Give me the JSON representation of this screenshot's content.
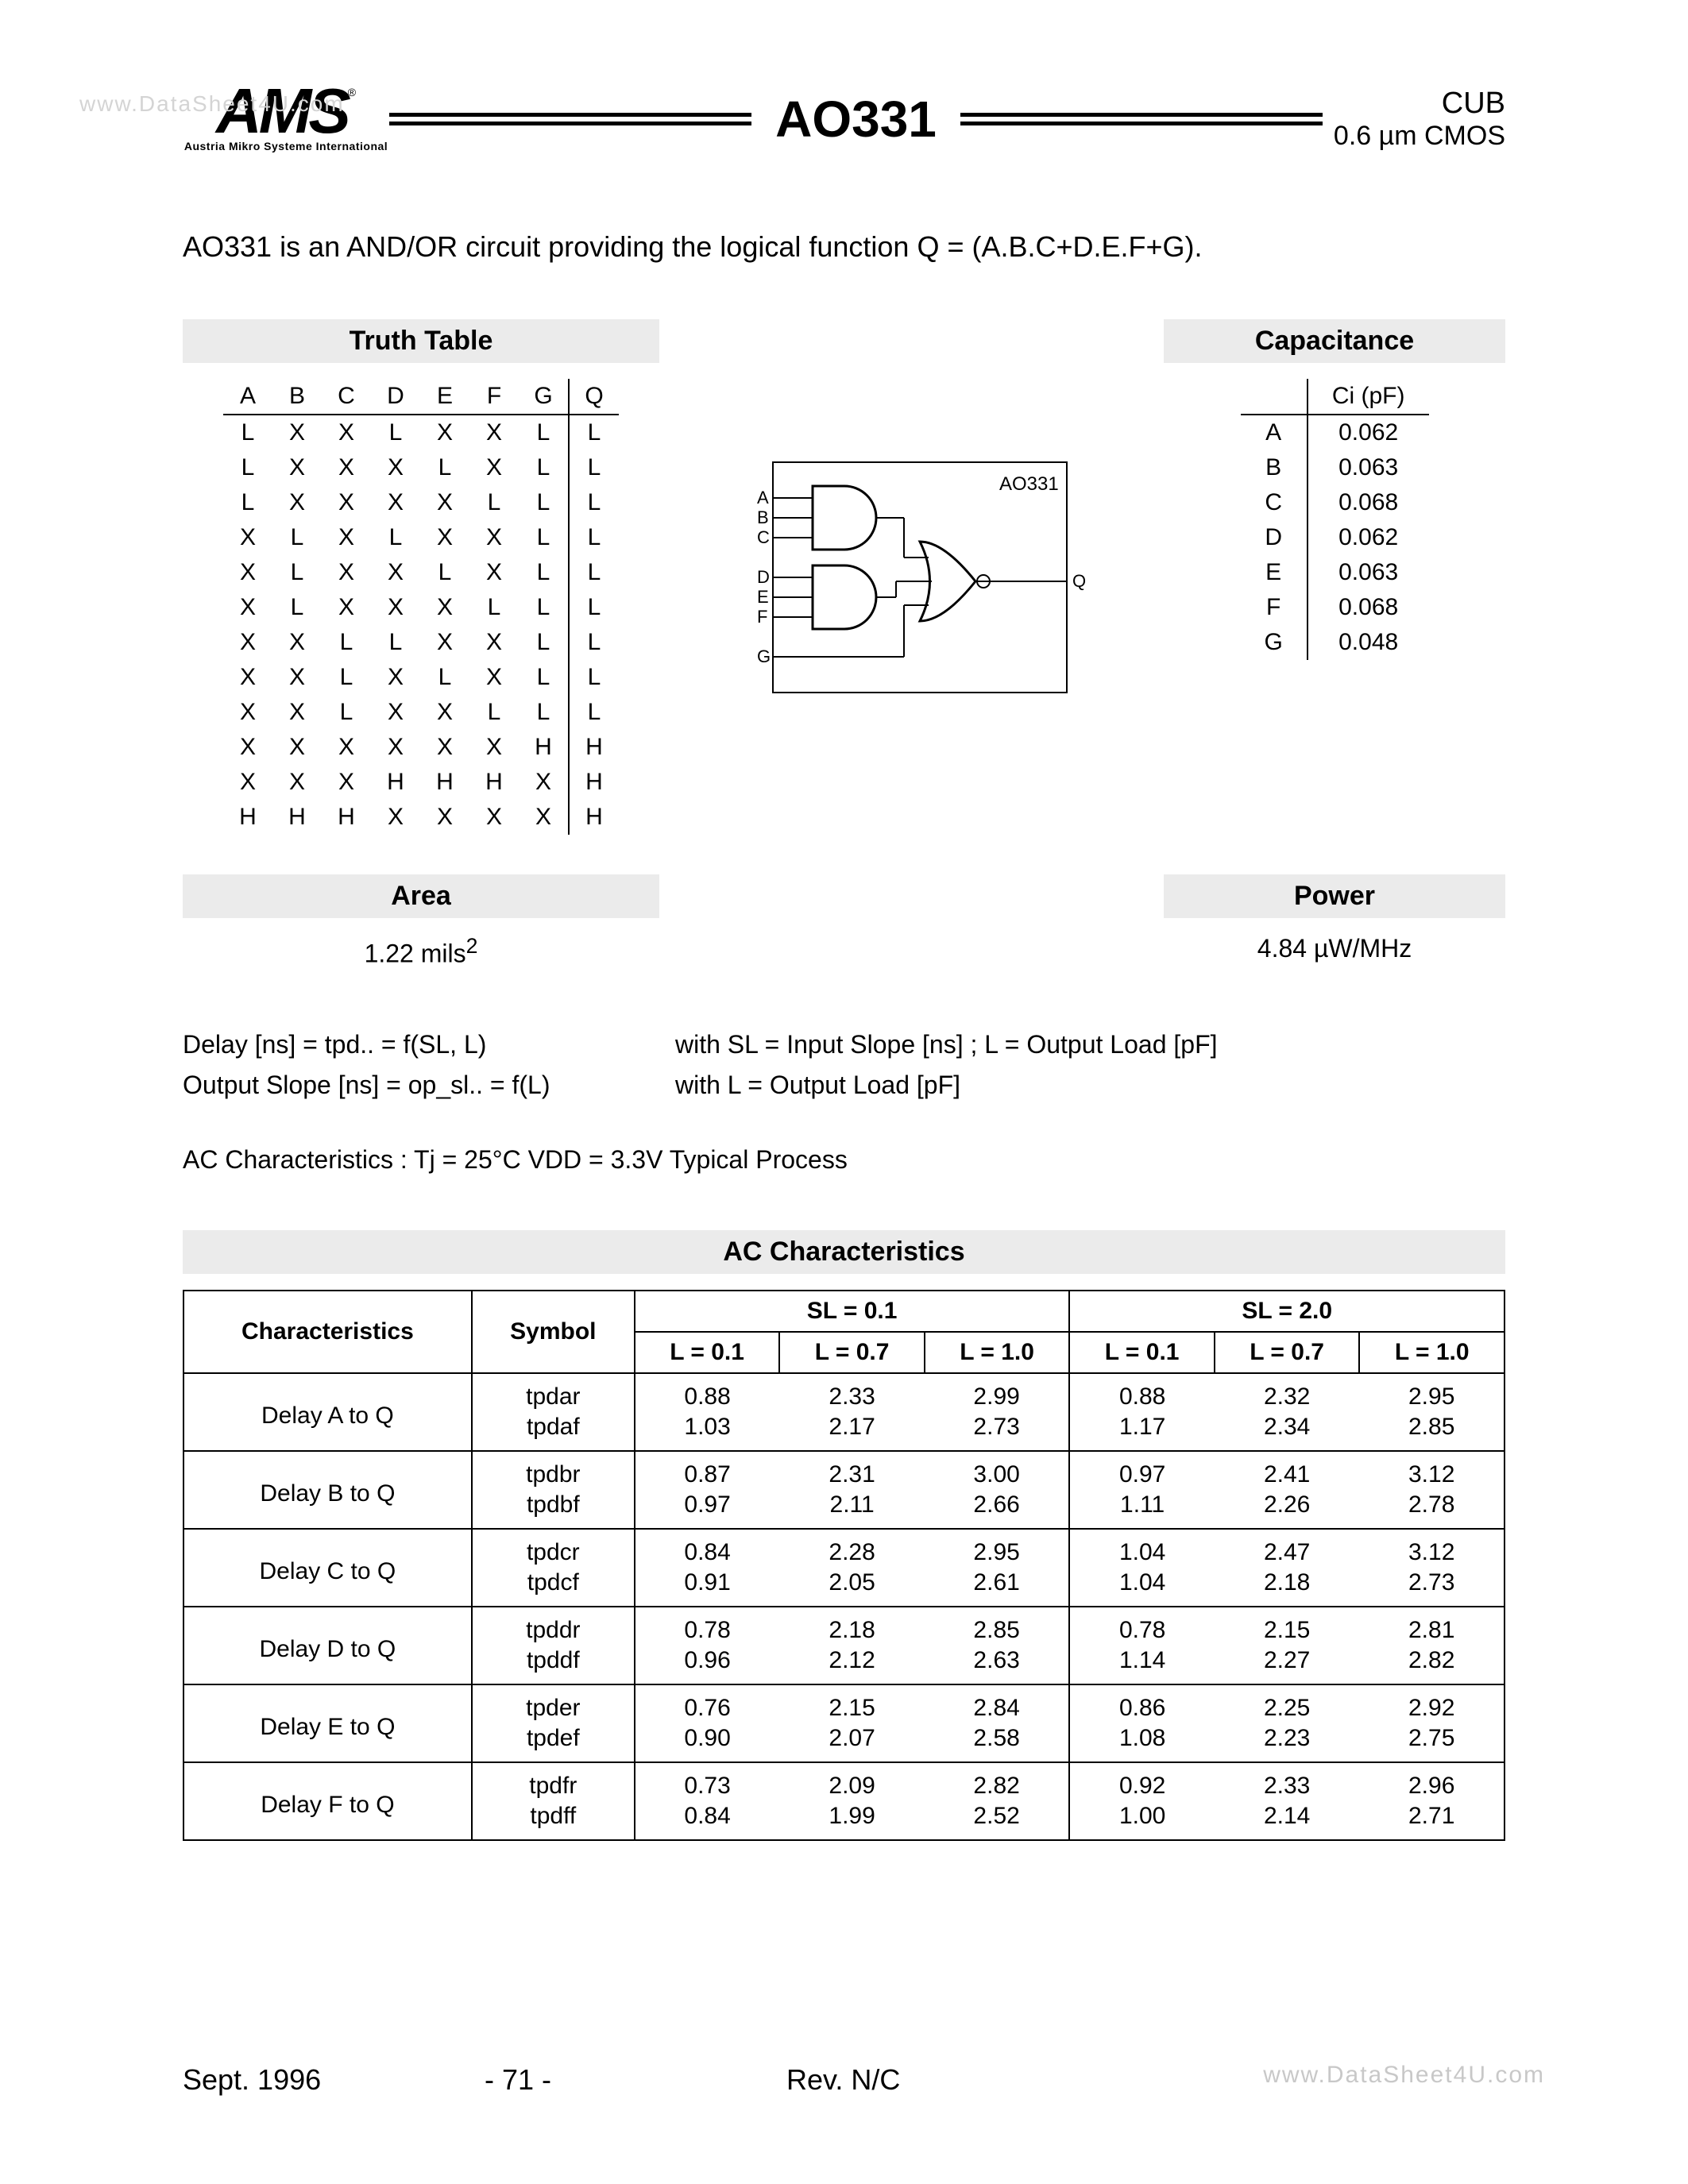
{
  "watermark_tl": "www.DataSheet4U.com",
  "watermark_br": "www.DataSheet4U.com",
  "header": {
    "logo_text": "AMS",
    "logo_reg": "®",
    "logo_sub": "Austria Mikro Systeme International",
    "title": "AO331",
    "right_top": "CUB",
    "right_bot": "0.6 µm CMOS"
  },
  "description": "AO331 is an AND/OR circuit providing the logical function Q = (A.B.C+D.E.F+G).",
  "truth": {
    "title": "Truth Table",
    "headers": [
      "A",
      "B",
      "C",
      "D",
      "E",
      "F",
      "G",
      "Q"
    ],
    "rows": [
      [
        "L",
        "X",
        "X",
        "L",
        "X",
        "X",
        "L",
        "L"
      ],
      [
        "L",
        "X",
        "X",
        "X",
        "L",
        "X",
        "L",
        "L"
      ],
      [
        "L",
        "X",
        "X",
        "X",
        "X",
        "L",
        "L",
        "L"
      ],
      [
        "X",
        "L",
        "X",
        "L",
        "X",
        "X",
        "L",
        "L"
      ],
      [
        "X",
        "L",
        "X",
        "X",
        "L",
        "X",
        "L",
        "L"
      ],
      [
        "X",
        "L",
        "X",
        "X",
        "X",
        "L",
        "L",
        "L"
      ],
      [
        "X",
        "X",
        "L",
        "L",
        "X",
        "X",
        "L",
        "L"
      ],
      [
        "X",
        "X",
        "L",
        "X",
        "L",
        "X",
        "L",
        "L"
      ],
      [
        "X",
        "X",
        "L",
        "X",
        "X",
        "L",
        "L",
        "L"
      ],
      [
        "X",
        "X",
        "X",
        "X",
        "X",
        "X",
        "H",
        "H"
      ],
      [
        "X",
        "X",
        "X",
        "H",
        "H",
        "H",
        "X",
        "H"
      ],
      [
        "H",
        "H",
        "H",
        "X",
        "X",
        "X",
        "X",
        "H"
      ]
    ]
  },
  "diagram": {
    "label": "AO331",
    "inputs": [
      "A",
      "B",
      "C",
      "D",
      "E",
      "F",
      "G"
    ],
    "output": "Q"
  },
  "cap": {
    "title": "Capacitance",
    "header": "Ci (pF)",
    "rows": [
      [
        "A",
        "0.062"
      ],
      [
        "B",
        "0.063"
      ],
      [
        "C",
        "0.068"
      ],
      [
        "D",
        "0.062"
      ],
      [
        "E",
        "0.063"
      ],
      [
        "F",
        "0.068"
      ],
      [
        "G",
        "0.048"
      ]
    ]
  },
  "area": {
    "title": "Area",
    "value": "1.22  mils",
    "sup": "2"
  },
  "power": {
    "title": "Power",
    "value": "4.84 µW/MHz"
  },
  "formulas": {
    "l1a": "Delay [ns]  =  tpd..  =  f(SL, L)",
    "l1b": "with  SL = Input Slope [ns] ;  L = Output Load [pF]",
    "l2a": "Output Slope [ns]  =  op_sl..  =  f(L)",
    "l2b": "with  L = Output Load [pF]"
  },
  "ac_cond": "AC Characteristics :    Tj = 25°C    VDD = 3.3V    Typical Process",
  "ac": {
    "title": "AC Characteristics",
    "h_char": "Characteristics",
    "h_sym": "Symbol",
    "sl1": "SL = 0.1",
    "sl2": "SL = 2.0",
    "l1": "L = 0.1",
    "l2": "L = 0.7",
    "l3": "L = 1.0",
    "rows": [
      {
        "c": "Delay A to Q",
        "s": [
          "tpdar",
          "tpdaf"
        ],
        "v1": [
          "0.88",
          "2.33",
          "2.99",
          "0.88",
          "2.32",
          "2.95"
        ],
        "v2": [
          "1.03",
          "2.17",
          "2.73",
          "1.17",
          "2.34",
          "2.85"
        ]
      },
      {
        "c": "Delay B to Q",
        "s": [
          "tpdbr",
          "tpdbf"
        ],
        "v1": [
          "0.87",
          "2.31",
          "3.00",
          "0.97",
          "2.41",
          "3.12"
        ],
        "v2": [
          "0.97",
          "2.11",
          "2.66",
          "1.11",
          "2.26",
          "2.78"
        ]
      },
      {
        "c": "Delay C to Q",
        "s": [
          "tpdcr",
          "tpdcf"
        ],
        "v1": [
          "0.84",
          "2.28",
          "2.95",
          "1.04",
          "2.47",
          "3.12"
        ],
        "v2": [
          "0.91",
          "2.05",
          "2.61",
          "1.04",
          "2.18",
          "2.73"
        ]
      },
      {
        "c": "Delay D to Q",
        "s": [
          "tpddr",
          "tpddf"
        ],
        "v1": [
          "0.78",
          "2.18",
          "2.85",
          "0.78",
          "2.15",
          "2.81"
        ],
        "v2": [
          "0.96",
          "2.12",
          "2.63",
          "1.14",
          "2.27",
          "2.82"
        ]
      },
      {
        "c": "Delay E to Q",
        "s": [
          "tpder",
          "tpdef"
        ],
        "v1": [
          "0.76",
          "2.15",
          "2.84",
          "0.86",
          "2.25",
          "2.92"
        ],
        "v2": [
          "0.90",
          "2.07",
          "2.58",
          "1.08",
          "2.23",
          "2.75"
        ]
      },
      {
        "c": "Delay F to Q",
        "s": [
          "tpdfr",
          "tpdff"
        ],
        "v1": [
          "0.73",
          "2.09",
          "2.82",
          "0.92",
          "2.33",
          "2.96"
        ],
        "v2": [
          "0.84",
          "1.99",
          "2.52",
          "1.00",
          "2.14",
          "2.71"
        ]
      }
    ]
  },
  "footer": {
    "date": "Sept. 1996",
    "page": "- 71 -",
    "rev": "Rev. N/C"
  }
}
